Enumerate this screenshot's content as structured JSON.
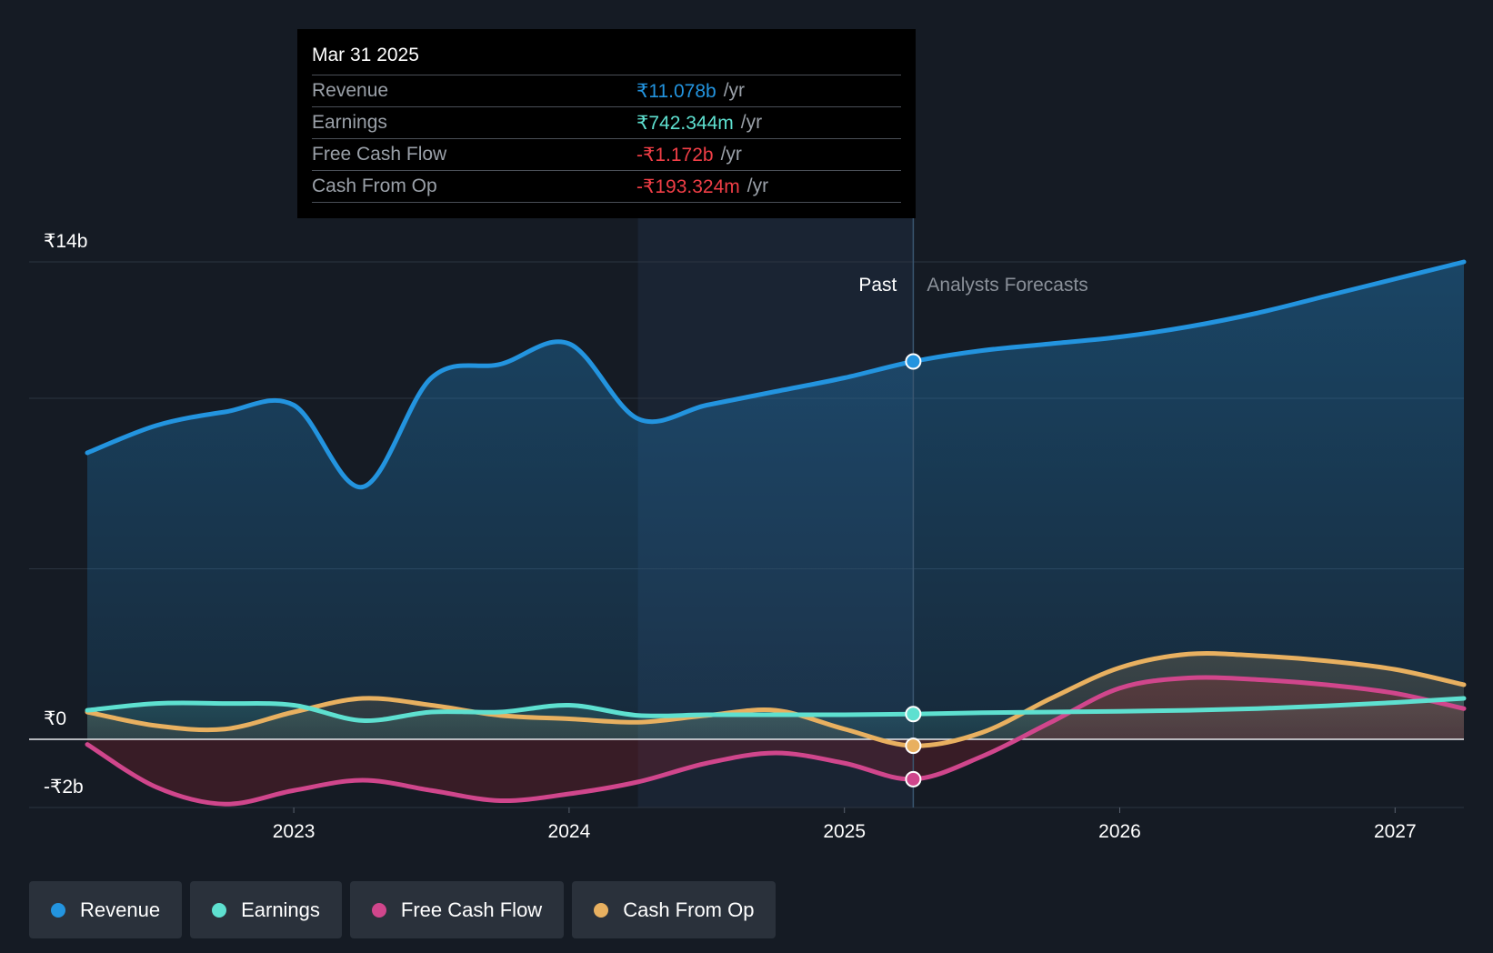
{
  "tooltip": {
    "date": "Mar 31 2025",
    "rows": [
      {
        "label": "Revenue",
        "value": "₹11.078b",
        "unit": "/yr",
        "color": "#2394df"
      },
      {
        "label": "Earnings",
        "value": "₹742.344m",
        "unit": "/yr",
        "color": "#5ee0d0"
      },
      {
        "label": "Free Cash Flow",
        "value": "-₹1.172b",
        "unit": "/yr",
        "color": "#f03e46"
      },
      {
        "label": "Cash From Op",
        "value": "-₹193.324m",
        "unit": "/yr",
        "color": "#f03e46"
      }
    ]
  },
  "regions": {
    "past": "Past",
    "forecast": "Analysts Forecasts"
  },
  "legend": [
    {
      "label": "Revenue",
      "color": "#2394df"
    },
    {
      "label": "Earnings",
      "color": "#5ee0d0"
    },
    {
      "label": "Free Cash Flow",
      "color": "#d0468c"
    },
    {
      "label": "Cash From Op",
      "color": "#e8b060"
    }
  ],
  "chart_data": {
    "type": "line",
    "title": "",
    "xlabel": "",
    "ylabel": "",
    "xlim": [
      2022.25,
      2027.25
    ],
    "ylim": [
      -2,
      14
    ],
    "y_tick_labels": [
      {
        "value": 14,
        "label": "₹14b"
      },
      {
        "value": 0,
        "label": "₹0"
      },
      {
        "value": -2,
        "label": "-₹2b"
      }
    ],
    "x_ticks": [
      2023,
      2024,
      2025,
      2026,
      2027
    ],
    "x_tick_labels": [
      "2023",
      "2024",
      "2025",
      "2026",
      "2027"
    ],
    "past_highlight_start": 2024.25,
    "divider_x": 2025.25,
    "series": [
      {
        "name": "Revenue",
        "color": "#2394df",
        "x": [
          2022.25,
          2022.5,
          2022.75,
          2023.0,
          2023.25,
          2023.5,
          2023.75,
          2024.0,
          2024.25,
          2024.5,
          2024.75,
          2025.0,
          2025.25,
          2025.5,
          2025.75,
          2026.0,
          2026.25,
          2026.5,
          2026.75,
          2027.0,
          2027.25
        ],
        "values": [
          8.4,
          9.2,
          9.6,
          9.8,
          7.4,
          10.6,
          11.0,
          11.6,
          9.4,
          9.8,
          10.2,
          10.6,
          11.08,
          11.4,
          11.6,
          11.8,
          12.1,
          12.5,
          13.0,
          13.5,
          14.0
        ]
      },
      {
        "name": "Earnings",
        "color": "#5ee0d0",
        "x": [
          2022.25,
          2022.5,
          2022.75,
          2023.0,
          2023.25,
          2023.5,
          2023.75,
          2024.0,
          2024.25,
          2024.5,
          2024.75,
          2025.0,
          2025.25,
          2025.5,
          2025.75,
          2026.0,
          2026.25,
          2026.5,
          2026.75,
          2027.0,
          2027.25
        ],
        "values": [
          0.85,
          1.05,
          1.05,
          1.0,
          0.55,
          0.8,
          0.8,
          1.0,
          0.7,
          0.72,
          0.72,
          0.72,
          0.74,
          0.78,
          0.8,
          0.82,
          0.85,
          0.9,
          0.98,
          1.08,
          1.2
        ]
      },
      {
        "name": "Free Cash Flow",
        "color": "#d0468c",
        "x": [
          2022.25,
          2022.5,
          2022.75,
          2023.0,
          2023.25,
          2023.5,
          2023.75,
          2024.0,
          2024.25,
          2024.5,
          2024.75,
          2025.0,
          2025.25,
          2025.5,
          2025.75,
          2026.0,
          2026.25,
          2026.5,
          2026.75,
          2027.0,
          2027.25
        ],
        "values": [
          -0.15,
          -1.4,
          -1.9,
          -1.5,
          -1.2,
          -1.5,
          -1.8,
          -1.6,
          -1.25,
          -0.7,
          -0.4,
          -0.7,
          -1.17,
          -0.5,
          0.5,
          1.5,
          1.8,
          1.75,
          1.6,
          1.35,
          0.9
        ]
      },
      {
        "name": "Cash From Op",
        "color": "#e8b060",
        "x": [
          2022.25,
          2022.5,
          2022.75,
          2023.0,
          2023.25,
          2023.5,
          2023.75,
          2024.0,
          2024.25,
          2024.5,
          2024.75,
          2025.0,
          2025.25,
          2025.5,
          2025.75,
          2026.0,
          2026.25,
          2026.5,
          2026.75,
          2027.0,
          2027.25
        ],
        "values": [
          0.8,
          0.4,
          0.3,
          0.8,
          1.2,
          1.0,
          0.7,
          0.6,
          0.5,
          0.7,
          0.85,
          0.3,
          -0.19,
          0.2,
          1.2,
          2.1,
          2.5,
          2.45,
          2.3,
          2.05,
          1.6
        ]
      }
    ]
  }
}
